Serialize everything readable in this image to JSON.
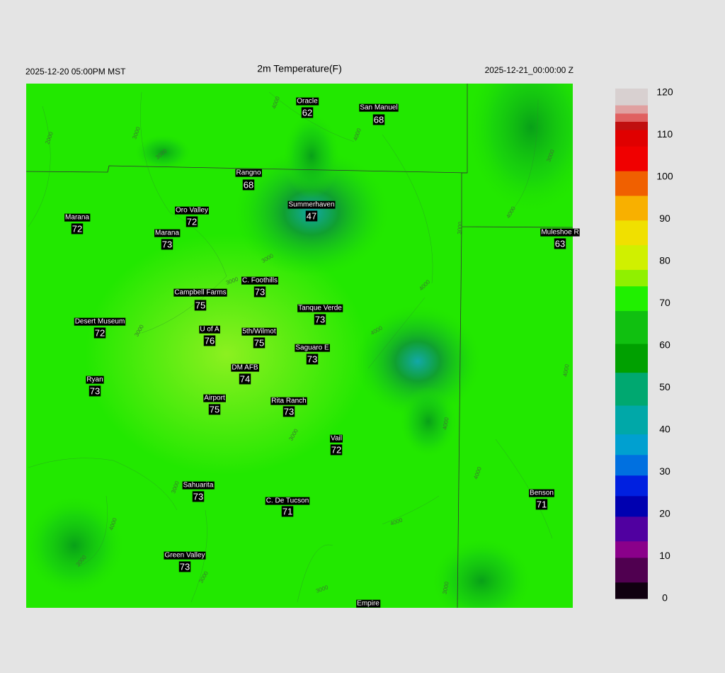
{
  "header": {
    "left": "2025-12-20 05:00PM MST",
    "title": "2m Temperature(F)",
    "right": "2025-12-21_00:00:00 Z"
  },
  "stations": [
    {
      "name": "Oracle",
      "value": 62
    },
    {
      "name": "San Manuel",
      "value": 68
    },
    {
      "name": "Rangno",
      "value": 68
    },
    {
      "name": "Summerhaven",
      "value": 47
    },
    {
      "name": "Marana",
      "value": 72
    },
    {
      "name": "Oro Valley",
      "value": 72
    },
    {
      "name": "Marana",
      "value": 73
    },
    {
      "name": "Muleshoe R",
      "value": 63
    },
    {
      "name": "C. Foothills",
      "value": 73
    },
    {
      "name": "Campbell Farms",
      "value": 75
    },
    {
      "name": "Tanque Verde",
      "value": 73
    },
    {
      "name": "Desert Museum",
      "value": 72
    },
    {
      "name": "U of A",
      "value": 76
    },
    {
      "name": "5th/Wilmot",
      "value": 75
    },
    {
      "name": "Saguaro E",
      "value": 73
    },
    {
      "name": "DM AFB",
      "value": 74
    },
    {
      "name": "Ryan",
      "value": 73
    },
    {
      "name": "Airport",
      "value": 75
    },
    {
      "name": "Rita Ranch",
      "value": 73
    },
    {
      "name": "Vail",
      "value": 72
    },
    {
      "name": "Sahuarita",
      "value": 73
    },
    {
      "name": "C. De Tucson",
      "value": 71
    },
    {
      "name": "Benson",
      "value": 71
    },
    {
      "name": "Green Valley",
      "value": 73
    },
    {
      "name": "Empire",
      "value": null
    }
  ],
  "contour_labels": [
    2000,
    3000,
    4000,
    3000,
    4000,
    3000,
    4000,
    3000,
    3000,
    3000,
    4000,
    4000,
    3000,
    4000,
    4000,
    3000,
    4000,
    3000,
    4000,
    3000,
    4000,
    3000,
    3000,
    3000
  ],
  "colorbar": {
    "ticks": [
      0,
      10,
      20,
      30,
      40,
      50,
      60,
      70,
      80,
      90,
      100,
      110,
      120
    ]
  }
}
